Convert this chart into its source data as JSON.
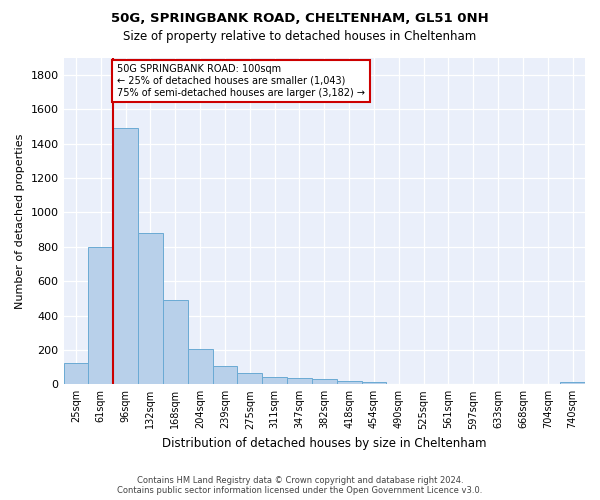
{
  "title1": "50G, SPRINGBANK ROAD, CHELTENHAM, GL51 0NH",
  "title2": "Size of property relative to detached houses in Cheltenham",
  "xlabel": "Distribution of detached houses by size in Cheltenham",
  "ylabel": "Number of detached properties",
  "footer1": "Contains HM Land Registry data © Crown copyright and database right 2024.",
  "footer2": "Contains public sector information licensed under the Open Government Licence v3.0.",
  "categories": [
    "25sqm",
    "61sqm",
    "96sqm",
    "132sqm",
    "168sqm",
    "204sqm",
    "239sqm",
    "275sqm",
    "311sqm",
    "347sqm",
    "382sqm",
    "418sqm",
    "454sqm",
    "490sqm",
    "525sqm",
    "561sqm",
    "597sqm",
    "633sqm",
    "668sqm",
    "704sqm",
    "740sqm"
  ],
  "values": [
    125,
    800,
    1490,
    880,
    490,
    205,
    105,
    65,
    42,
    35,
    30,
    20,
    13,
    2,
    1,
    1,
    1,
    1,
    1,
    1,
    15
  ],
  "bar_color": "#b8d0ea",
  "bar_edgecolor": "#6aaad4",
  "annotation_line1": "50G SPRINGBANK ROAD: 100sqm",
  "annotation_line2": "← 25% of detached houses are smaller (1,043)",
  "annotation_line3": "75% of semi-detached houses are larger (3,182) →",
  "vline_x_idx": 2,
  "ylim_max": 1900,
  "yticks": [
    0,
    200,
    400,
    600,
    800,
    1000,
    1200,
    1400,
    1600,
    1800
  ],
  "box_color": "#cc0000",
  "plot_bg_color": "#eaeffa"
}
